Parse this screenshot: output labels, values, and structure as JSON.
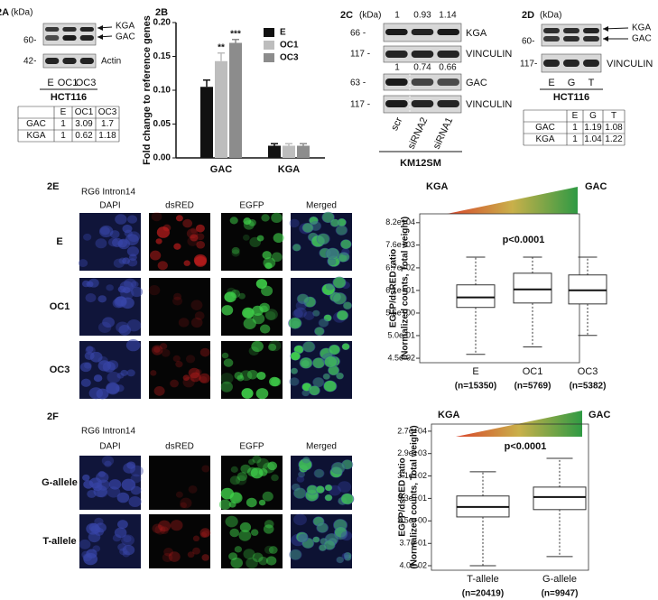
{
  "panel_2A": {
    "label": "2A",
    "unit": "(kDa)",
    "markers": [
      "60-",
      "42-"
    ],
    "bands": [
      "KGA",
      "GAC",
      "Actin"
    ],
    "lanes": [
      "E",
      "OC1",
      "OC3"
    ],
    "cell_line": "HCT116",
    "table": {
      "header": [
        "E",
        "OC1",
        "OC3"
      ],
      "rows": [
        [
          "GAC",
          "1",
          "3.09",
          "1.7"
        ],
        [
          "KGA",
          "1",
          "0.62",
          "1.18"
        ]
      ]
    }
  },
  "panel_2C": {
    "label": "2C",
    "unit": "(kDa)",
    "ratios_top": [
      "1",
      "0.93",
      "1.14"
    ],
    "markers": [
      "66 -",
      "117 -",
      "63 -",
      "117 -"
    ],
    "bands": [
      "KGA",
      "VINCULIN",
      "GAC",
      "VINCULIN"
    ],
    "ratios_mid": [
      "1",
      "0.74",
      "0.66"
    ],
    "lanes": [
      "scr",
      "siRNA2",
      "siRNA1"
    ],
    "cell_line": "KM12SM"
  },
  "panel_2D": {
    "label": "2D",
    "unit": "(kDa)",
    "markers": [
      "60-",
      "117-"
    ],
    "bands": [
      "KGA",
      "GAC",
      "VINCULIN"
    ],
    "lanes": [
      "E",
      "G",
      "T"
    ],
    "cell_line": "HCT116",
    "table": {
      "header": [
        "E",
        "G",
        "T"
      ],
      "rows": [
        [
          "GAC",
          "1",
          "1.19",
          "1.08"
        ],
        [
          "KGA",
          "1",
          "1.04",
          "1.22"
        ]
      ]
    }
  },
  "panel_2E": {
    "label": "2E",
    "construct": "RG6 Intron14",
    "channels": [
      "DAPI",
      "dsRED",
      "EGFP",
      "Merged"
    ],
    "rows": [
      "E",
      "OC1",
      "OC3"
    ]
  },
  "panel_2F": {
    "label": "2F",
    "construct": "RG6 Intron14",
    "channels": [
      "DAPI",
      "dsRED",
      "EGFP",
      "Merged"
    ],
    "rows": [
      "G-allele",
      "T-allele"
    ]
  },
  "chart_data": [
    {
      "type": "bar",
      "panel_label": "2B",
      "ylabel": "Fold change to reference genes",
      "categories": [
        "GAC",
        "KGA"
      ],
      "series": [
        {
          "name": "E",
          "color": "#111111",
          "values": [
            0.105,
            0.018
          ],
          "errors": [
            0.01,
            0.003
          ]
        },
        {
          "name": "OC1",
          "color": "#bdbdbd",
          "values": [
            0.143,
            0.018
          ],
          "errors": [
            0.012,
            0.003
          ],
          "annotation": "**"
        },
        {
          "name": "OC3",
          "color": "#8c8c8c",
          "values": [
            0.17,
            0.018
          ],
          "errors": [
            0.005,
            0.003
          ],
          "annotation": "***"
        }
      ],
      "ylim": [
        0,
        0.2
      ],
      "yticks": [
        {
          "value": 0,
          "label": "0.00"
        },
        {
          "value": 0.05,
          "label": "0.05"
        },
        {
          "value": 0.1,
          "label": "0.10"
        },
        {
          "value": 0.15,
          "label": "0.15"
        },
        {
          "value": 0.2,
          "label": "0.20"
        }
      ]
    },
    {
      "type": "box",
      "log_scale": true,
      "ylabel": [
        "EGFP/dsRED ratio",
        "(Normalized counts, Total weight)"
      ],
      "gradient_left": "KGA",
      "gradient_right": "GAC",
      "annotation": "p<0.0001",
      "categories": [
        "E",
        "OC1",
        "OC3"
      ],
      "counts": [
        "(n=15350)",
        "(n=5769)",
        "(n=5382)"
      ],
      "boxes": [
        {
          "whisker_low": 0.068,
          "q1": 10,
          "median": 29,
          "q3": 110,
          "whisker_high": 2100
        },
        {
          "whisker_low": 0.15,
          "q1": 16,
          "median": 68,
          "q3": 380,
          "whisker_high": 2100
        },
        {
          "whisker_low": 0.51,
          "q1": 14.5,
          "median": 62,
          "q3": 316,
          "whisker_high": 2100
        }
      ],
      "ylim": [
        0.028,
        210000
      ],
      "yticks": [
        {
          "value": 82000,
          "label": "8.2e+04"
        },
        {
          "value": 7600,
          "label": "7.6e+03"
        },
        {
          "value": 670,
          "label": "6.7e+02"
        },
        {
          "value": 61,
          "label": "6.1e+01"
        },
        {
          "value": 5.5,
          "label": "5.5e+00"
        },
        {
          "value": 0.5,
          "label": "5.0e-01"
        },
        {
          "value": 0.045,
          "label": "4.5e-02"
        }
      ]
    },
    {
      "type": "box",
      "log_scale": true,
      "ylabel": [
        "EGFP/dsRED ratio",
        "(Normalized counts, Total weight)"
      ],
      "gradient_left": "KGA",
      "gradient_right": "GAC",
      "annotation": "p<0.0001",
      "categories": [
        "T-allele",
        "G-allele"
      ],
      "counts": [
        "(n=20419)",
        "(n=9947)"
      ],
      "boxes": [
        {
          "whisker_low": 0.04,
          "q1": 5.2,
          "median": 14,
          "q3": 42,
          "whisker_high": 470
        },
        {
          "whisker_low": 0.1,
          "q1": 10.8,
          "median": 38,
          "q3": 102,
          "whisker_high": 1800
        }
      ],
      "ylim": [
        0.0255,
        55000
      ],
      "yticks": [
        {
          "value": 27000,
          "label": "2.7e+04"
        },
        {
          "value": 2900,
          "label": "2.9e+03"
        },
        {
          "value": 310,
          "label": "3.1e+02"
        },
        {
          "value": 33,
          "label": "3.3e+01"
        },
        {
          "value": 3.5,
          "label": "3.5e+00"
        },
        {
          "value": 0.37,
          "label": "3.7e-01"
        },
        {
          "value": 0.04,
          "label": "4.0e-02"
        }
      ]
    }
  ]
}
